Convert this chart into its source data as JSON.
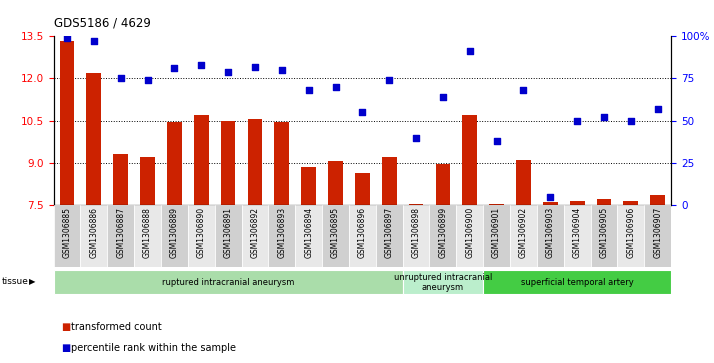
{
  "title": "GDS5186 / 4629",
  "samples": [
    "GSM1306885",
    "GSM1306886",
    "GSM1306887",
    "GSM1306888",
    "GSM1306889",
    "GSM1306890",
    "GSM1306891",
    "GSM1306892",
    "GSM1306893",
    "GSM1306894",
    "GSM1306895",
    "GSM1306896",
    "GSM1306897",
    "GSM1306898",
    "GSM1306899",
    "GSM1306900",
    "GSM1306901",
    "GSM1306902",
    "GSM1306903",
    "GSM1306904",
    "GSM1306905",
    "GSM1306906",
    "GSM1306907"
  ],
  "bar_values": [
    13.35,
    12.2,
    9.3,
    9.2,
    10.45,
    10.7,
    10.5,
    10.55,
    10.45,
    8.85,
    9.05,
    8.65,
    9.2,
    7.55,
    8.95,
    10.7,
    7.55,
    9.1,
    7.6,
    7.65,
    7.7,
    7.65,
    7.85
  ],
  "percentile_values": [
    99,
    97,
    75,
    74,
    81,
    83,
    79,
    82,
    80,
    68,
    70,
    55,
    74,
    40,
    64,
    91,
    38,
    68,
    5,
    50,
    52,
    50,
    57
  ],
  "groups": [
    {
      "label": "ruptured intracranial aneurysm",
      "start": 0,
      "end": 13,
      "color": "#aaddaa"
    },
    {
      "label": "unruptured intracranial\naneurysm",
      "start": 13,
      "end": 16,
      "color": "#ccffcc"
    },
    {
      "label": "superficial temporal artery",
      "start": 16,
      "end": 23,
      "color": "#44bb44"
    }
  ],
  "bar_color": "#cc2200",
  "dot_color": "#0000cc",
  "ylim_left": [
    7.5,
    13.5
  ],
  "ylim_right": [
    0,
    100
  ],
  "yticks_left": [
    7.5,
    9.0,
    10.5,
    12.0,
    13.5
  ],
  "yticks_right": [
    0,
    25,
    50,
    75,
    100
  ],
  "ytick_labels_right": [
    "0",
    "25",
    "50",
    "75",
    "100%"
  ],
  "hlines": [
    9.0,
    10.5,
    12.0
  ],
  "legend_items": [
    {
      "label": "transformed count",
      "color": "#cc2200"
    },
    {
      "label": "percentile rank within the sample",
      "color": "#0000cc"
    }
  ]
}
